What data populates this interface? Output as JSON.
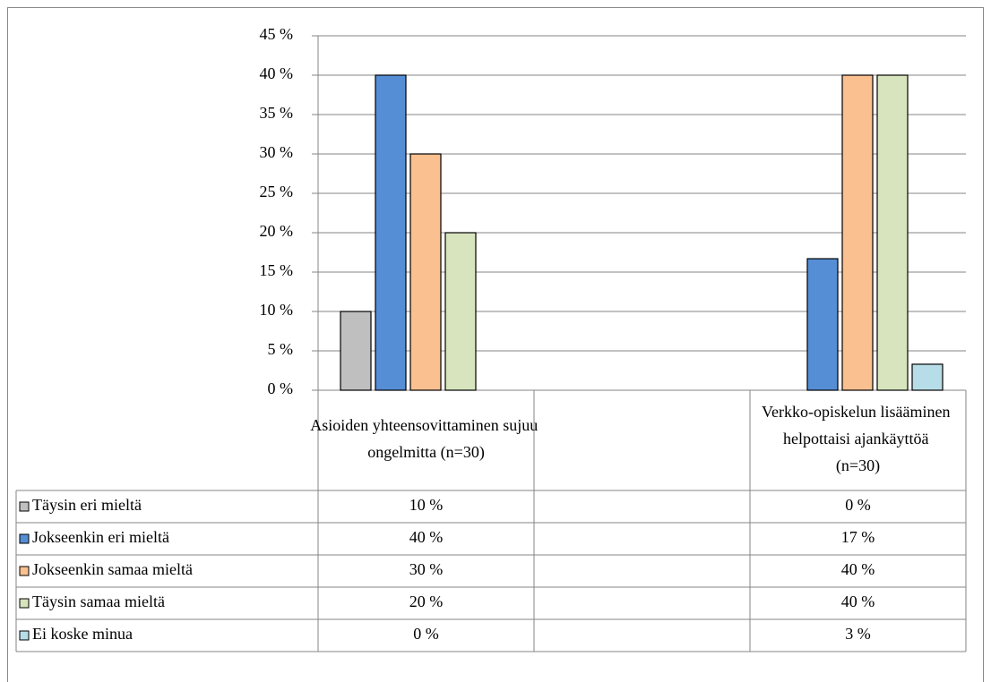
{
  "chart_data": {
    "type": "bar",
    "categories": [
      "Asioiden yhteensovittaminen sujuu ongelmitta (n=30)",
      null,
      "Verkko-opiskelun lisääminen helpottaisi ajankäyttöä (n=30)"
    ],
    "series": [
      {
        "name": "Täysin eri mieltä",
        "color": "#bfbfbf",
        "values": [
          10,
          null,
          0
        ],
        "value_labels": [
          "10 %",
          null,
          "0 %"
        ]
      },
      {
        "name": "Jokseenkin eri mieltä",
        "color": "#558ed5",
        "values": [
          40,
          null,
          16.7
        ],
        "value_labels": [
          "40 %",
          null,
          "17 %"
        ]
      },
      {
        "name": "Jokseenkin samaa mieltä",
        "color": "#fac090",
        "values": [
          30,
          null,
          40
        ],
        "value_labels": [
          "30 %",
          null,
          "40 %"
        ]
      },
      {
        "name": "Täysin samaa mieltä",
        "color": "#d7e4bd",
        "values": [
          20,
          null,
          40
        ],
        "value_labels": [
          "20 %",
          null,
          "40 %"
        ]
      },
      {
        "name": "Ei koske minua",
        "color": "#b7dee8",
        "values": [
          0,
          null,
          3.3
        ],
        "value_labels": [
          "0 %",
          null,
          "3 %"
        ]
      }
    ],
    "ylim": [
      0,
      45
    ],
    "yticks": [
      {
        "value": 0,
        "label": "0 %"
      },
      {
        "value": 5,
        "label": "5 %"
      },
      {
        "value": 10,
        "label": "10 %"
      },
      {
        "value": 15,
        "label": "15 %"
      },
      {
        "value": 20,
        "label": "20 %"
      },
      {
        "value": 25,
        "label": "25 %"
      },
      {
        "value": 30,
        "label": "30 %"
      },
      {
        "value": 35,
        "label": "35 %"
      },
      {
        "value": 40,
        "label": "40 %"
      },
      {
        "value": 45,
        "label": "45 %"
      }
    ],
    "grid": true,
    "data_table": true
  }
}
